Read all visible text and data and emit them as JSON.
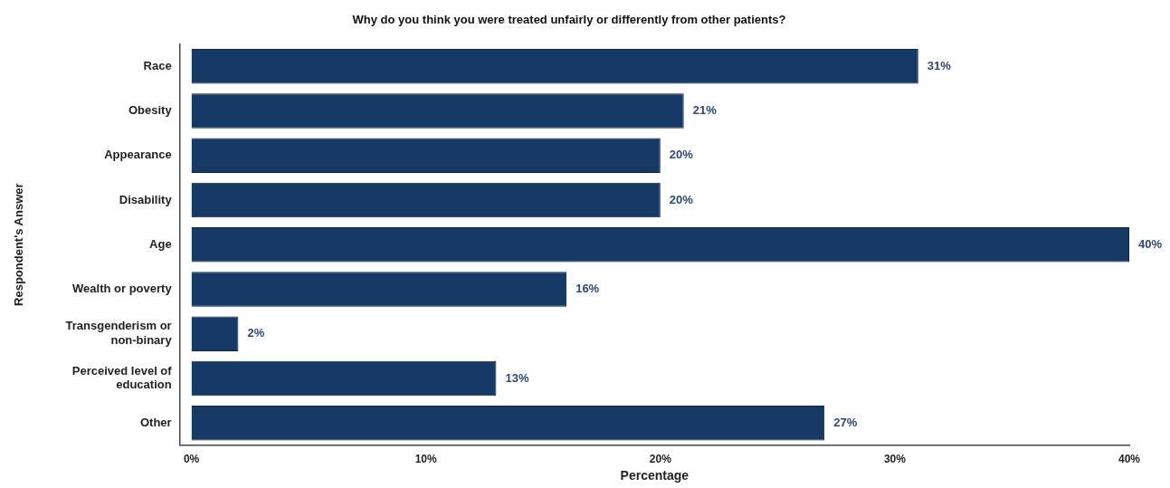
{
  "chart_data": {
    "type": "bar",
    "orientation": "horizontal",
    "title": "Why do you think you were treated unfairly or differently from other patients?",
    "xlabel": "Percentage",
    "ylabel": "Respondent's Answer",
    "categories": [
      "Race",
      "Obesity",
      "Appearance",
      "Disability",
      "Age",
      "Wealth or poverty",
      "Transgenderism or non-binary",
      "Perceived level of education",
      "Other"
    ],
    "values": [
      31,
      21,
      20,
      20,
      40,
      16,
      2,
      13,
      27
    ],
    "value_labels": [
      "31%",
      "21%",
      "20%",
      "20%",
      "40%",
      "16%",
      "2%",
      "13%",
      "27%"
    ],
    "color": "#163a64",
    "xlim": [
      -0.5,
      40
    ],
    "xticks": [
      {
        "value": 0,
        "label": "0%"
      },
      {
        "value": 10,
        "label": "10%"
      },
      {
        "value": 20,
        "label": "20%"
      },
      {
        "value": 30,
        "label": "30%"
      },
      {
        "value": 40,
        "label": "40%"
      }
    ],
    "grid": false,
    "legend": false
  }
}
